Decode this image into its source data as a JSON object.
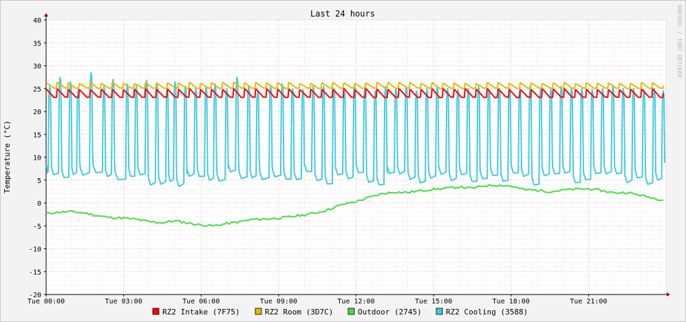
{
  "chart_data": {
    "type": "line",
    "title": "Last 24 hours",
    "ylabel": "Temperature (°C)",
    "watermark": "RRDTOOL / TOBI OETIKER",
    "ylim": [
      -20,
      40
    ],
    "yticks": [
      "40",
      "35",
      "30",
      "25",
      "20",
      "15",
      "10",
      "5",
      "0",
      "-5",
      "-10",
      "-15",
      "-20"
    ],
    "xlim_hours": [
      0,
      24
    ],
    "xticks": [
      "Tue 00:00",
      "Tue 03:00",
      "Tue 06:00",
      "Tue 09:00",
      "Tue 12:00",
      "Tue 15:00",
      "Tue 18:00",
      "Tue 21:00"
    ],
    "series": [
      {
        "name": "RZ2 Intake (7F75)",
        "color": "#ff0000",
        "pattern": "sawtooth",
        "cycles": 56,
        "start_hour": 0.0,
        "end_hour": 23.9,
        "low": 23.1,
        "high": 24.8
      },
      {
        "name": "RZ2 Room (3D7C)",
        "color": "#e6b800",
        "pattern": "sawtooth",
        "cycles": 56,
        "start_hour": 0.0,
        "end_hour": 23.9,
        "low": 25.1,
        "high": 26.2
      },
      {
        "name": "Outdoor (2745)",
        "color": "#44dd44",
        "pattern": "smooth",
        "x": [
          0,
          0.5,
          1,
          1.5,
          2,
          2.5,
          3,
          3.5,
          4,
          4.5,
          5,
          5.5,
          6,
          6.5,
          7,
          7.5,
          8,
          8.5,
          9,
          9.5,
          10,
          10.5,
          11,
          11.5,
          12,
          12.5,
          13,
          13.5,
          14,
          14.5,
          15,
          15.5,
          16,
          16.5,
          17,
          17.5,
          18,
          18.5,
          19,
          19.5,
          20,
          20.5,
          21,
          21.5,
          22,
          22.5,
          23,
          23.5,
          23.9
        ],
        "values": [
          -2.3,
          -2.0,
          -1.9,
          -2.2,
          -2.8,
          -3.2,
          -3.3,
          -3.6,
          -4.1,
          -4.3,
          -3.9,
          -4.4,
          -4.8,
          -5.0,
          -4.5,
          -4.1,
          -3.6,
          -3.5,
          -3.3,
          -3.0,
          -2.6,
          -2.1,
          -1.3,
          -0.3,
          0.3,
          1.2,
          2.0,
          2.4,
          2.3,
          2.7,
          3.0,
          3.2,
          3.5,
          3.2,
          3.8,
          3.9,
          3.7,
          2.9,
          2.8,
          2.5,
          2.8,
          3.0,
          3.1,
          2.7,
          2.2,
          2.3,
          1.7,
          1.1,
          0.6
        ]
      },
      {
        "name": "RZ2 Cooling (3588)",
        "color": "#44ccdd",
        "pattern": "spiky",
        "spike_hours": [
          0.15,
          0.55,
          0.95,
          1.25,
          1.75,
          2.25,
          2.6,
          3.15,
          3.5,
          3.9,
          4.3,
          4.7,
          5.0,
          5.4,
          5.8,
          6.2,
          6.55,
          7.0,
          7.4,
          7.85,
          8.2,
          8.7,
          9.15,
          9.55,
          9.95,
          10.35,
          10.75,
          11.15,
          11.55,
          11.95,
          12.35,
          12.75,
          13.15,
          13.55,
          13.95,
          14.35,
          14.75,
          15.15,
          15.55,
          15.95,
          16.35,
          16.75,
          17.15,
          17.55,
          17.95,
          18.35,
          18.75,
          19.15,
          19.55,
          19.95,
          20.35,
          20.75,
          21.15,
          21.55,
          21.95,
          22.35,
          22.75,
          23.15,
          23.55,
          23.9
        ],
        "spike_values": [
          25.5,
          27.5,
          26.5,
          24.8,
          28.5,
          25.5,
          27.0,
          26.0,
          25.5,
          26.8,
          25.8,
          25.0,
          26.5,
          25.5,
          25.0,
          25.5,
          26.0,
          25.0,
          27.5,
          25.5,
          24.5,
          25.5,
          26.0,
          25.0,
          24.8,
          25.5,
          25.5,
          25.0,
          24.5,
          25.8,
          25.5,
          24.5,
          25.5,
          25.0,
          25.5,
          24.5,
          25.0,
          25.5,
          25.0,
          24.8,
          25.0,
          25.5,
          24.8,
          25.0,
          25.0,
          24.8,
          25.5,
          25.0,
          25.0,
          25.5,
          25.0,
          25.0,
          24.8,
          25.0,
          25.5,
          25.0,
          25.0,
          24.8,
          25.0,
          24.5
        ],
        "base_low": 3.5,
        "base_high": 7.0
      }
    ],
    "legend_position": "bottom",
    "grid": true
  }
}
